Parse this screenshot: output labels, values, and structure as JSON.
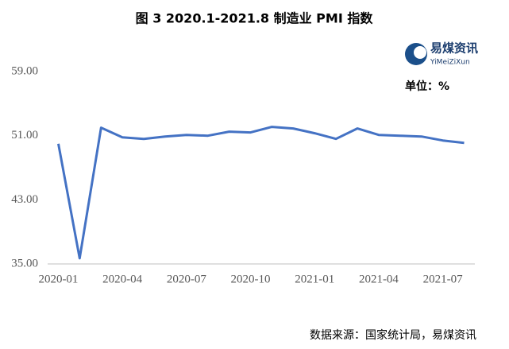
{
  "chart_data": {
    "type": "line",
    "title": "图 3 2020.1-2021.8 制造业 PMI 指数",
    "unit_label": "单位：%",
    "source": "数据来源：国家统计局，易煤资讯",
    "logo": {
      "name": "易煤资讯",
      "pinyin": "YiMeiZiXun"
    },
    "categories": [
      "2020-01",
      null,
      null,
      "2020-04",
      null,
      null,
      "2020-07",
      null,
      null,
      "2020-10",
      null,
      null,
      "2021-01",
      null,
      null,
      "2021-04",
      null,
      null,
      "2021-07",
      null
    ],
    "values": [
      50.0,
      35.7,
      52.0,
      50.8,
      50.6,
      50.9,
      51.1,
      51.0,
      51.5,
      51.4,
      52.1,
      51.9,
      51.3,
      50.6,
      51.9,
      51.1,
      51.0,
      50.9,
      50.4,
      50.1
    ],
    "color": "#4472c4",
    "ylim": [
      35,
      59
    ],
    "yticks": [
      {
        "value": 35,
        "label": "35.00"
      },
      {
        "value": 43,
        "label": "43.00"
      },
      {
        "value": 51,
        "label": "51.00"
      },
      {
        "value": 59,
        "label": "59.00"
      }
    ],
    "grid": false
  }
}
